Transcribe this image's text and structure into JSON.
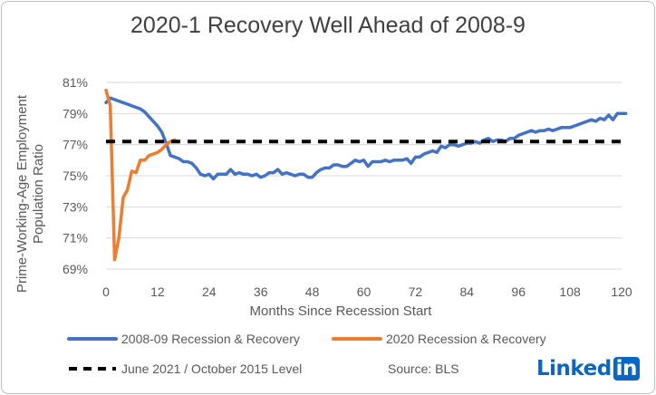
{
  "chart_data": {
    "type": "line",
    "title": "2020-1 Recovery Well Ahead of 2008-9",
    "xlabel": "Months Since Recession Start",
    "ylabel": "Prime-Working-Age Employment Population Ratio",
    "xlim": [
      0,
      120
    ],
    "ylim": [
      69,
      81
    ],
    "x_ticks": [
      0,
      12,
      24,
      36,
      48,
      60,
      72,
      84,
      96,
      108,
      120
    ],
    "y_ticks": [
      "69%",
      "71%",
      "73%",
      "75%",
      "77%",
      "79%",
      "81%"
    ],
    "grid": "horizontal",
    "legend_position": "bottom",
    "series": [
      {
        "name": "2008-09 Recession & Recovery",
        "color": "#4472c4",
        "points": [
          [
            0,
            79.7
          ],
          [
            1,
            80.0
          ],
          [
            2,
            79.9
          ],
          [
            3,
            79.8
          ],
          [
            4,
            79.7
          ],
          [
            5,
            79.6
          ],
          [
            6,
            79.5
          ],
          [
            7,
            79.4
          ],
          [
            8,
            79.3
          ],
          [
            9,
            79.1
          ],
          [
            10,
            78.8
          ],
          [
            11,
            78.5
          ],
          [
            12,
            78.2
          ],
          [
            13,
            77.8
          ],
          [
            14,
            77.1
          ],
          [
            15,
            76.3
          ],
          [
            16,
            76.2
          ],
          [
            17,
            76.1
          ],
          [
            18,
            75.9
          ],
          [
            19,
            75.9
          ],
          [
            20,
            75.8
          ],
          [
            21,
            75.5
          ],
          [
            22,
            75.1
          ],
          [
            23,
            75.0
          ],
          [
            24,
            75.1
          ],
          [
            25,
            74.8
          ],
          [
            26,
            75.1
          ],
          [
            27,
            75.1
          ],
          [
            28,
            75.1
          ],
          [
            29,
            75.4
          ],
          [
            30,
            75.1
          ],
          [
            31,
            75.2
          ],
          [
            32,
            75.1
          ],
          [
            33,
            75.1
          ],
          [
            34,
            75.0
          ],
          [
            35,
            75.1
          ],
          [
            36,
            74.9
          ],
          [
            37,
            75.0
          ],
          [
            38,
            75.2
          ],
          [
            39,
            75.2
          ],
          [
            40,
            75.4
          ],
          [
            41,
            75.1
          ],
          [
            42,
            75.2
          ],
          [
            43,
            75.1
          ],
          [
            44,
            75.0
          ],
          [
            45,
            75.1
          ],
          [
            46,
            75.1
          ],
          [
            47,
            74.9
          ],
          [
            48,
            74.9
          ],
          [
            49,
            75.2
          ],
          [
            50,
            75.4
          ],
          [
            51,
            75.5
          ],
          [
            52,
            75.5
          ],
          [
            53,
            75.7
          ],
          [
            54,
            75.7
          ],
          [
            55,
            75.6
          ],
          [
            56,
            75.6
          ],
          [
            57,
            75.8
          ],
          [
            58,
            76.0
          ],
          [
            59,
            75.9
          ],
          [
            60,
            76.0
          ],
          [
            61,
            75.6
          ],
          [
            62,
            75.9
          ],
          [
            63,
            75.9
          ],
          [
            64,
            75.9
          ],
          [
            65,
            76.0
          ],
          [
            66,
            75.9
          ],
          [
            67,
            76.0
          ],
          [
            68,
            76.0
          ],
          [
            69,
            76.0
          ],
          [
            70,
            76.1
          ],
          [
            71,
            75.8
          ],
          [
            72,
            76.2
          ],
          [
            73,
            76.2
          ],
          [
            74,
            76.4
          ],
          [
            75,
            76.5
          ],
          [
            76,
            76.6
          ],
          [
            77,
            76.5
          ],
          [
            78,
            76.9
          ],
          [
            79,
            76.8
          ],
          [
            80,
            77.0
          ],
          [
            81,
            77.0
          ],
          [
            82,
            76.9
          ],
          [
            83,
            77.0
          ],
          [
            84,
            77.1
          ],
          [
            85,
            77.1
          ],
          [
            86,
            77.2
          ],
          [
            87,
            77.1
          ],
          [
            88,
            77.3
          ],
          [
            89,
            77.4
          ],
          [
            90,
            77.2
          ],
          [
            91,
            77.3
          ],
          [
            92,
            77.3
          ],
          [
            93,
            77.2
          ],
          [
            94,
            77.4
          ],
          [
            95,
            77.4
          ],
          [
            96,
            77.6
          ],
          [
            97,
            77.7
          ],
          [
            98,
            77.8
          ],
          [
            99,
            77.9
          ],
          [
            100,
            77.8
          ],
          [
            101,
            77.9
          ],
          [
            102,
            77.9
          ],
          [
            103,
            78.0
          ],
          [
            104,
            77.9
          ],
          [
            105,
            78.0
          ],
          [
            106,
            78.1
          ],
          [
            107,
            78.1
          ],
          [
            108,
            78.1
          ],
          [
            109,
            78.2
          ],
          [
            110,
            78.3
          ],
          [
            111,
            78.4
          ],
          [
            112,
            78.5
          ],
          [
            113,
            78.6
          ],
          [
            114,
            78.5
          ],
          [
            115,
            78.7
          ],
          [
            116,
            78.6
          ],
          [
            117,
            78.9
          ],
          [
            118,
            78.6
          ],
          [
            119,
            79.0
          ],
          [
            120,
            79.0
          ],
          [
            121,
            79.0
          ]
        ]
      },
      {
        "name": "2020 Recession & Recovery",
        "color": "#ed7d31",
        "points": [
          [
            0,
            80.5
          ],
          [
            1,
            79.5
          ],
          [
            2,
            69.6
          ],
          [
            3,
            71.0
          ],
          [
            4,
            73.6
          ],
          [
            5,
            74.1
          ],
          [
            6,
            75.3
          ],
          [
            7,
            75.2
          ],
          [
            8,
            76.0
          ],
          [
            9,
            76.0
          ],
          [
            10,
            76.3
          ],
          [
            11,
            76.4
          ],
          [
            12,
            76.5
          ],
          [
            13,
            76.7
          ],
          [
            14,
            77.0
          ],
          [
            15,
            77.2
          ],
          [
            16,
            77.3
          ]
        ]
      },
      {
        "name": "June 2021 / October 2015 Level",
        "color": "#000000",
        "dashed": true,
        "points": [
          [
            0,
            77.2
          ],
          [
            121,
            77.2
          ]
        ]
      }
    ],
    "annotations": [
      "Source: BLS"
    ]
  },
  "logo": {
    "text": "Linked",
    "box_text": "in",
    "color": "#0a66c2"
  }
}
